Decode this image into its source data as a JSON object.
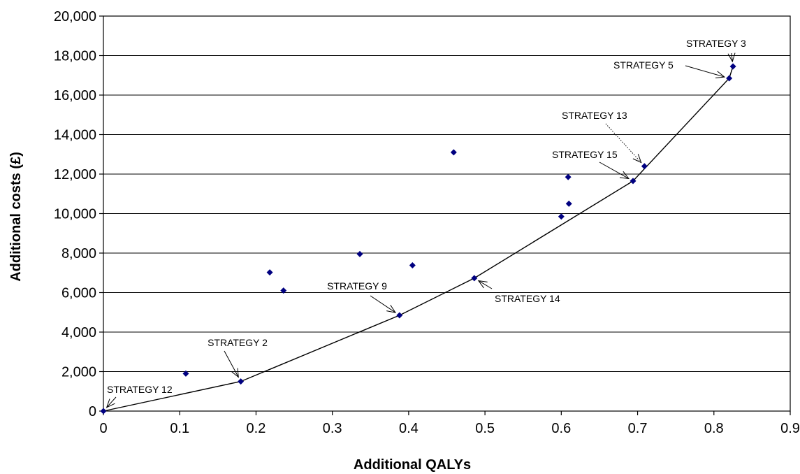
{
  "chart_data": {
    "type": "scatter",
    "title": "",
    "xlabel": "Additional QALYs",
    "ylabel": "Additional costs (£)",
    "xlim": [
      0,
      0.9
    ],
    "ylim": [
      0,
      20000
    ],
    "x_ticks": [
      "0",
      "0.1",
      "0.2",
      "0.3",
      "0.4",
      "0.5",
      "0.6",
      "0.7",
      "0.8",
      "0.9"
    ],
    "y_ticks": [
      "0",
      "2,000",
      "4,000",
      "6,000",
      "8,000",
      "10,000",
      "12,000",
      "14,000",
      "16,000",
      "18,000",
      "20,000"
    ],
    "grid": "horizontal",
    "marker_color": "#000080",
    "points": [
      {
        "x": 0.0,
        "y": 0
      },
      {
        "x": 0.108,
        "y": 1900
      },
      {
        "x": 0.18,
        "y": 1500
      },
      {
        "x": 0.218,
        "y": 7020
      },
      {
        "x": 0.236,
        "y": 6100
      },
      {
        "x": 0.336,
        "y": 7950
      },
      {
        "x": 0.388,
        "y": 4850
      },
      {
        "x": 0.405,
        "y": 7380
      },
      {
        "x": 0.459,
        "y": 13100
      },
      {
        "x": 0.486,
        "y": 6730
      },
      {
        "x": 0.6,
        "y": 9850
      },
      {
        "x": 0.609,
        "y": 11850
      },
      {
        "x": 0.61,
        "y": 10500
      },
      {
        "x": 0.694,
        "y": 11650
      },
      {
        "x": 0.709,
        "y": 12400
      },
      {
        "x": 0.82,
        "y": 16850
      },
      {
        "x": 0.825,
        "y": 17450
      }
    ],
    "frontier": [
      {
        "x": 0.0,
        "y": 0
      },
      {
        "x": 0.18,
        "y": 1500
      },
      {
        "x": 0.388,
        "y": 4850
      },
      {
        "x": 0.486,
        "y": 6730
      },
      {
        "x": 0.694,
        "y": 11650
      },
      {
        "x": 0.82,
        "y": 16850
      },
      {
        "x": 0.825,
        "y": 17450
      }
    ],
    "annotations": [
      {
        "label": "STRATEGY 12",
        "point_x": 0.0,
        "point_y": 0,
        "style": "solid"
      },
      {
        "label": "STRATEGY 2",
        "point_x": 0.18,
        "point_y": 1500,
        "style": "solid"
      },
      {
        "label": "STRATEGY 9",
        "point_x": 0.388,
        "point_y": 4850,
        "style": "solid"
      },
      {
        "label": "STRATEGY 14",
        "point_x": 0.486,
        "point_y": 6730,
        "style": "solid"
      },
      {
        "label": "STRATEGY 15",
        "point_x": 0.694,
        "point_y": 11650,
        "style": "solid"
      },
      {
        "label": "STRATEGY 13",
        "point_x": 0.709,
        "point_y": 12400,
        "style": "dotted"
      },
      {
        "label": "STRATEGY 5",
        "point_x": 0.82,
        "point_y": 16850,
        "style": "solid"
      },
      {
        "label": "STRATEGY 3",
        "point_x": 0.825,
        "point_y": 17450,
        "style": "solid"
      }
    ]
  }
}
